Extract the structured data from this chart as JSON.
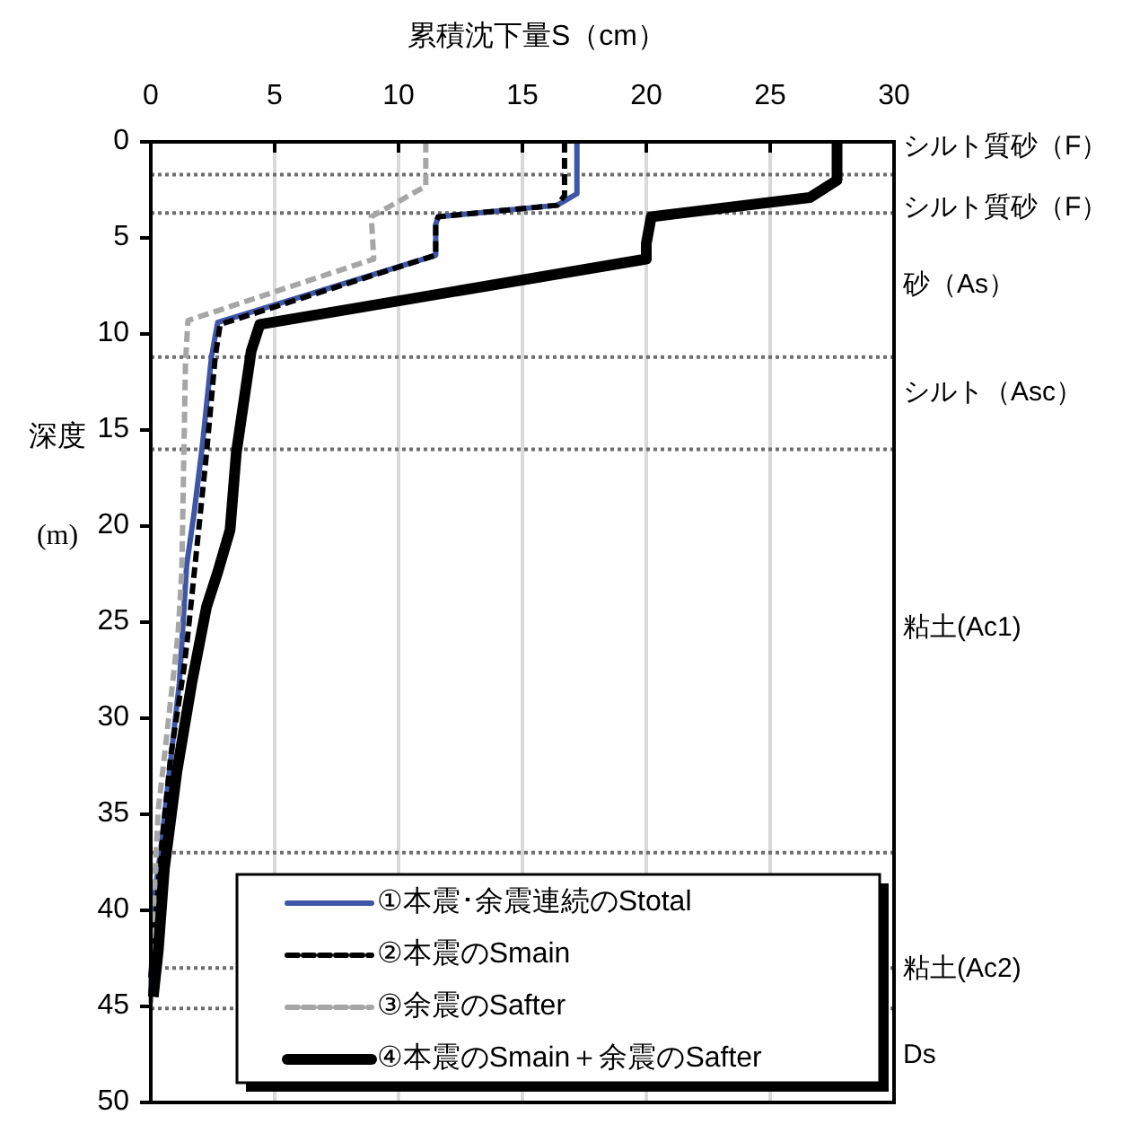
{
  "chart_data": {
    "type": "line",
    "xlabel": "累積沈下量S（cm）",
    "ylabel": "深度\n(m)",
    "xlim": [
      0,
      30
    ],
    "xticks": [
      0,
      5,
      10,
      15,
      20,
      25,
      30
    ],
    "ylim": [
      50,
      0
    ],
    "yticks": [
      0,
      5,
      10,
      15,
      20,
      25,
      30,
      35,
      40,
      45,
      50
    ],
    "grid": "x",
    "legend": "bottom",
    "series": [
      {
        "name": "①本震･余震連続のStotal",
        "color": "#3f56a6",
        "line_style": "solid",
        "x": [
          17.2,
          17.2,
          16.4,
          11.6,
          11.5,
          11.5,
          2.7,
          2.45,
          2.1,
          1.75,
          1.45,
          1.15,
          0.75,
          0.4,
          0.1,
          0
        ],
        "values": [
          0,
          2.7,
          3.3,
          3.9,
          4.3,
          5.9,
          9.4,
          11.2,
          15.6,
          19.3,
          22,
          28.2,
          32.8,
          36.9,
          39.7,
          44.3
        ]
      },
      {
        "name": "②本震のSmain",
        "color": "#000000",
        "line_style": "dashed",
        "x": [
          16.7,
          16.7,
          16.4,
          11.6,
          11.5,
          11.5,
          2.8,
          2.6,
          2.25,
          1.9,
          1.5,
          1.35,
          0.8,
          0.45,
          0
        ],
        "values": [
          0,
          2.8,
          3.3,
          3.9,
          4.3,
          5.9,
          9.5,
          11.2,
          16.2,
          20.6,
          25.6,
          27.3,
          32,
          36.5,
          43.5
        ]
      },
      {
        "name": "③余震のSafter",
        "color": "#a6a6a6",
        "line_style": "dashed",
        "x": [
          11.1,
          11.1,
          8.9,
          9,
          1.5,
          1.4,
          1.25,
          1.1,
          0.6,
          0.3,
          0.1,
          0
        ],
        "values": [
          0,
          2.3,
          3.9,
          6.1,
          9.3,
          11.5,
          22.4,
          25.6,
          31.4,
          34.8,
          40,
          45
        ]
      },
      {
        "name": "④本震のSmain＋余震のSafter",
        "color": "#000000",
        "line_style": "solid",
        "x": [
          27.7,
          27.7,
          26.6,
          20.2,
          20,
          20,
          4.4,
          4.05,
          3.45,
          3.2,
          2.7,
          2.25,
          1.65,
          1.05,
          0.55,
          0.3,
          0.1
        ],
        "values": [
          0,
          2,
          2.9,
          3.9,
          5.3,
          6.1,
          9.5,
          10.9,
          16.2,
          20.2,
          22.4,
          24.2,
          28.2,
          32.8,
          37.8,
          42.1,
          44.5
        ]
      }
    ],
    "ref_lines": [
      {
        "axis": "y",
        "value": 1.7,
        "color": "#6e6e6e",
        "line_style": "dotted"
      },
      {
        "axis": "y",
        "value": 3.7,
        "color": "#6e6e6e",
        "line_style": "dotted"
      },
      {
        "axis": "y",
        "value": 11.2,
        "color": "#6e6e6e",
        "line_style": "dotted"
      },
      {
        "axis": "y",
        "value": 16,
        "color": "#6e6e6e",
        "line_style": "dotted"
      },
      {
        "axis": "y",
        "value": 37,
        "color": "#6e6e6e",
        "line_style": "dotted"
      },
      {
        "axis": "y",
        "value": 43,
        "color": "#6e6e6e",
        "line_style": "dotted"
      },
      {
        "axis": "y",
        "value": 45.1,
        "color": "#6e6e6e",
        "line_style": "dotted"
      }
    ],
    "annotations": [
      "シルト質砂（F）",
      "シルト質砂（F）",
      "砂（As）",
      "シルト（Asc）",
      "粘土(Ac1)",
      "粘土(Ac2)",
      "Ds"
    ]
  }
}
